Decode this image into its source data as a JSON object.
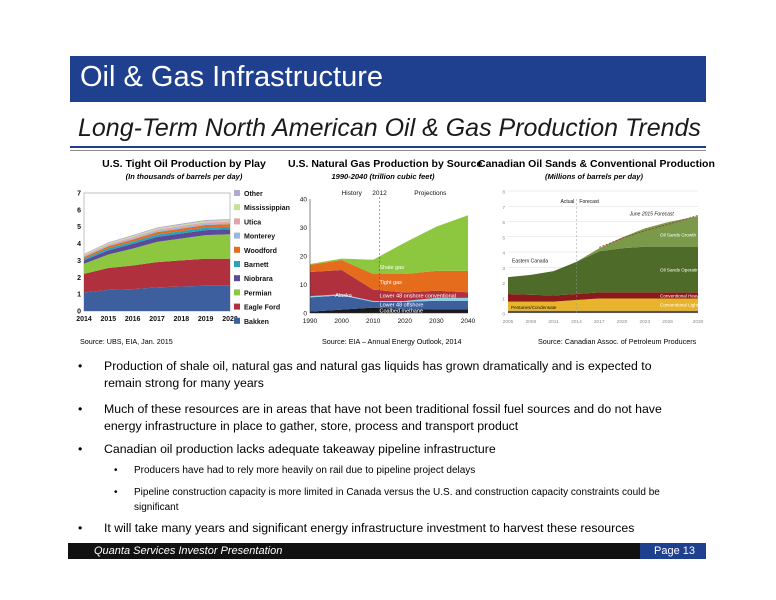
{
  "header": {
    "title": "Oil & Gas Infrastructure",
    "subtitle": "Long-Term North American Oil & Gas Production Trends"
  },
  "charts": {
    "tight_oil": {
      "title": "U.S. Tight Oil Production by Play",
      "subtitle": "(In thousands of barrels per day)",
      "source": "Source: UBS, EIA, Jan. 2015"
    },
    "natural_gas": {
      "title": "U.S. Natural Gas Production by Source",
      "subtitle": "1990-2040 (trillion cubic feet)",
      "source": "Source: EIA – Annual Energy Outlook, 2014"
    },
    "oil_sands": {
      "title": "Canadian Oil Sands & Conventional Production",
      "subtitle": "(Millions of barrels per day)",
      "source": "Source: Canadian Assoc. of Petroleum Producers"
    }
  },
  "bullets": [
    "Production of shale oil, natural gas and natural gas liquids has grown dramatically and is expected to remain strong for many years",
    "Much of these resources are in areas that have not been traditional fossil fuel sources and do not have energy infrastructure in place to gather, store, process and transport product",
    "Canadian oil production lacks adequate takeaway pipeline infrastructure",
    "It will take many years and significant energy infrastructure investment to harvest these resources"
  ],
  "sub_bullets": [
    "Producers have had to rely more heavily on rail due to pipeline project delays",
    "Pipeline construction capacity is more limited in Canada versus the U.S. and construction capacity constraints could be significant"
  ],
  "footer": {
    "text": "Quanta Services Investor Presentation",
    "page": "Page 13"
  },
  "chart_data": [
    {
      "type": "area",
      "x": [
        2014,
        2015,
        2016,
        2017,
        2018,
        2019,
        2020
      ],
      "ylim": [
        0,
        7
      ],
      "yticks": [
        0,
        1,
        2,
        3,
        4,
        5,
        6,
        7
      ],
      "series": [
        {
          "name": "Bakken",
          "values": [
            1.1,
            1.25,
            1.3,
            1.4,
            1.45,
            1.5,
            1.5
          ],
          "color": "#3d5f9e"
        },
        {
          "name": "Eagle Ford",
          "values": [
            1.1,
            1.3,
            1.4,
            1.5,
            1.55,
            1.6,
            1.6
          ],
          "color": "#b0303e"
        },
        {
          "name": "Permian",
          "values": [
            0.6,
            0.8,
            1.0,
            1.2,
            1.3,
            1.4,
            1.45
          ],
          "color": "#8dc63f"
        },
        {
          "name": "Niobrara",
          "values": [
            0.2,
            0.25,
            0.28,
            0.3,
            0.3,
            0.3,
            0.3
          ],
          "color": "#5b4a9a"
        },
        {
          "name": "Barnett",
          "values": [
            0.1,
            0.12,
            0.13,
            0.14,
            0.14,
            0.15,
            0.15
          ],
          "color": "#2aa3b8"
        },
        {
          "name": "Woodford",
          "values": [
            0.1,
            0.12,
            0.13,
            0.14,
            0.15,
            0.15,
            0.15
          ],
          "color": "#e46c1c"
        },
        {
          "name": "Monterey",
          "values": [
            0.05,
            0.06,
            0.07,
            0.08,
            0.08,
            0.08,
            0.08
          ],
          "color": "#9bb7e0"
        },
        {
          "name": "Utica",
          "values": [
            0.05,
            0.06,
            0.07,
            0.07,
            0.08,
            0.08,
            0.08
          ],
          "color": "#e4a3ad"
        },
        {
          "name": "Mississippian",
          "values": [
            0.05,
            0.06,
            0.07,
            0.07,
            0.07,
            0.08,
            0.08
          ],
          "color": "#c5e09b"
        },
        {
          "name": "Other",
          "values": [
            0.04,
            0.05,
            0.05,
            0.05,
            0.06,
            0.06,
            0.06
          ],
          "color": "#b3a8d2"
        }
      ]
    },
    {
      "type": "area",
      "x": [
        1990,
        2000,
        2010,
        2020,
        2030,
        2040
      ],
      "ylim": [
        0,
        40
      ],
      "yticks": [
        0,
        10,
        20,
        30,
        40
      ],
      "annotations": [
        "History",
        "2012",
        "Projections"
      ],
      "series": [
        {
          "name": "Coalbed methane",
          "values": [
            0.5,
            1.2,
            1.9,
            1.4,
            1.3,
            1.3
          ],
          "color": "#1a1a1a"
        },
        {
          "name": "Lower 48 offshore",
          "values": [
            5.0,
            5.0,
            2.0,
            2.5,
            3.0,
            3.0
          ],
          "color": "#3d5f9e"
        },
        {
          "name": "Alaska",
          "values": [
            0.4,
            0.4,
            0.3,
            0.3,
            1.0,
            1.0
          ],
          "color": "#8dd1e6"
        },
        {
          "name": "Lower 48 onshore conventional",
          "values": [
            8.5,
            8.5,
            4.0,
            3.0,
            2.5,
            2.0
          ],
          "color": "#b0303e"
        },
        {
          "name": "Tight gas",
          "values": [
            2.5,
            3.5,
            5.5,
            6.5,
            7.0,
            7.5
          ],
          "color": "#e46c1c"
        },
        {
          "name": "Shale gas",
          "values": [
            0.3,
            0.5,
            5.0,
            11.0,
            15.5,
            19.5
          ],
          "color": "#8dc63f"
        }
      ]
    },
    {
      "type": "area",
      "x": [
        2005,
        2008,
        2011,
        2014,
        2017,
        2020,
        2023,
        2026,
        2030
      ],
      "ylim": [
        0,
        8
      ],
      "yticks": [
        0,
        1,
        2,
        3,
        4,
        5,
        6,
        7,
        8
      ],
      "annotations": [
        "Actual",
        "Forecast",
        "June 2015 Forecast",
        "Eastern Canada"
      ],
      "series": [
        {
          "name": "Pentanes/Condensate",
          "values": [
            0.15,
            0.15,
            0.15,
            0.15,
            0.15,
            0.15,
            0.15,
            0.15,
            0.15
          ],
          "color": "#555555"
        },
        {
          "name": "Conventional Light",
          "values": [
            0.6,
            0.6,
            0.6,
            0.7,
            0.8,
            0.8,
            0.8,
            0.8,
            0.8
          ],
          "color": "#e8b42b"
        },
        {
          "name": "Conventional Heavy",
          "values": [
            0.5,
            0.45,
            0.4,
            0.4,
            0.4,
            0.4,
            0.4,
            0.4,
            0.4
          ],
          "color": "#8b1a1a"
        },
        {
          "name": "Oil Sands Operating & In Construction",
          "values": [
            1.1,
            1.3,
            1.6,
            2.1,
            2.7,
            2.9,
            3.0,
            3.0,
            3.0
          ],
          "color": "#4f6b2a"
        },
        {
          "name": "Oil Sands Growth",
          "values": [
            0.0,
            0.0,
            0.0,
            0.0,
            0.2,
            0.7,
            1.2,
            1.6,
            2.0
          ],
          "color": "#7a9a4a"
        }
      ]
    }
  ]
}
